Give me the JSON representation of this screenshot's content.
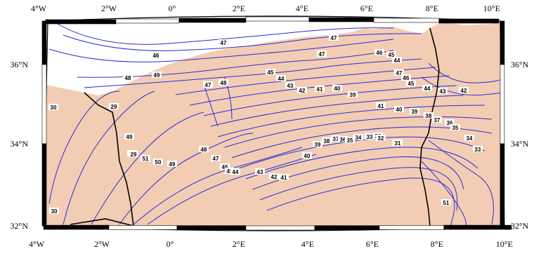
{
  "colors": {
    "land": "#f2cdb4",
    "sea": "#ffffff",
    "contour": "#2b2bd0",
    "border": "#000000",
    "frame": "#000000"
  },
  "longitude_labels_top": [
    "4°W",
    "2°W",
    "0°",
    "2°E",
    "4°E",
    "6°E",
    "8°E",
    "10°E"
  ],
  "longitude_labels_bottom": [
    "4°W",
    "2°W",
    "0°",
    "2°E",
    "4°E",
    "6°E",
    "8°E",
    "10°E"
  ],
  "latitude_labels_left": [
    "36°N",
    "34°N",
    "32°N"
  ],
  "latitude_labels_right": [
    "36°N",
    "34°N",
    "32°N"
  ],
  "contour_labels": [
    "47",
    "47",
    "46",
    "47",
    "48",
    "49",
    "46",
    "45",
    "44",
    "45",
    "44",
    "43",
    "42",
    "41",
    "40",
    "39",
    "47",
    "48",
    "47",
    "46",
    "45",
    "44",
    "43",
    "42",
    "41",
    "40",
    "39",
    "38",
    "37",
    "36",
    "35",
    "34",
    "33",
    "32",
    "31",
    "30",
    "29",
    "49",
    "50",
    "51",
    "50",
    "49",
    "48",
    "47",
    "46",
    "45",
    "44",
    "43",
    "42",
    "41",
    "40",
    "39",
    "38",
    "37",
    "36",
    "35",
    "34",
    "33",
    "32",
    "31",
    "30",
    "29",
    "51",
    "50",
    "29"
  ]
}
